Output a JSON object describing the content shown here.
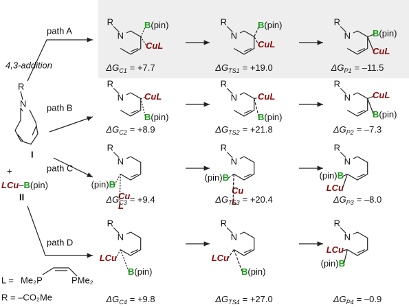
{
  "addition": "4,3-addition",
  "reactant_I": {
    "R": "R",
    "N": "N",
    "label": "I"
  },
  "plus": "+",
  "reactant_II": {
    "LCu": "LCu",
    "dash": "–",
    "B": "B",
    "pin": "(pin)",
    "label": "II"
  },
  "legend": {
    "L_eq": "L =",
    "left": "Me₂P",
    "right": "PMe₂",
    "R_eq": "R = –CO₂Me"
  },
  "paths": [
    {
      "name": "path A",
      "species": [
        {
          "atoms": [
            [
              "R"
            ],
            [
              "N"
            ],
            [
              "B",
              "(pin)"
            ],
            [
              "CuL"
            ]
          ],
          "dg": "ΔG",
          "sub": "C1",
          "val": "= +7.7"
        },
        {
          "atoms": [
            [
              "R"
            ],
            [
              "N"
            ],
            [
              "B",
              "(pin)"
            ],
            [
              "CuL"
            ]
          ],
          "dg": "ΔG",
          "sub": "TS1",
          "val": "= +19.0"
        },
        {
          "atoms": [
            [
              "R"
            ],
            [
              "N"
            ],
            [
              "B",
              "(pin)"
            ],
            [
              "CuL"
            ]
          ],
          "dg": "ΔG",
          "sub": "P1",
          "val": "= –11.5"
        }
      ]
    },
    {
      "name": "path B",
      "species": [
        {
          "atoms": [
            [
              "R"
            ],
            [
              "N"
            ],
            [
              "CuL"
            ],
            [
              "B",
              "(pin)"
            ]
          ],
          "dg": "ΔG",
          "sub": "C2",
          "val": "= +8.9"
        },
        {
          "atoms": [
            [
              "R"
            ],
            [
              "N"
            ],
            [
              "CuL"
            ],
            [
              "B",
              "(pin)"
            ]
          ],
          "dg": "ΔG",
          "sub": "TS2",
          "val": "= +21.8"
        },
        {
          "atoms": [
            [
              "R"
            ],
            [
              "N"
            ],
            [
              "CuL"
            ],
            [
              "B",
              "(pin)"
            ]
          ],
          "dg": "ΔG",
          "sub": "P2",
          "val": "= –7.3"
        }
      ]
    },
    {
      "name": "path C",
      "species": [
        {
          "atoms": [
            [
              "R"
            ],
            [
              "N"
            ],
            [
              "(pin)",
              "B"
            ],
            [
              "Cu"
            ],
            [
              "L"
            ]
          ],
          "dg": "ΔG",
          "sub": "C3",
          "val": "= +9.4"
        },
        {
          "atoms": [
            [
              "R"
            ],
            [
              "N"
            ],
            [
              "(pin)",
              "B"
            ],
            [
              "Cu"
            ],
            [
              "L"
            ]
          ],
          "dg": "ΔG",
          "sub": "TS3",
          "val": "= +20.4"
        },
        {
          "atoms": [
            [
              "R"
            ],
            [
              "N"
            ],
            [
              "(pin)",
              "B"
            ],
            [
              "LCu"
            ]
          ],
          "dg": "ΔG",
          "sub": "P3",
          "val": "= –8.0"
        }
      ]
    },
    {
      "name": "path D",
      "species": [
        {
          "atoms": [
            [
              "R"
            ],
            [
              "N"
            ],
            [
              "LCu"
            ],
            [
              "B",
              "(pin)"
            ]
          ],
          "dg": "ΔG",
          "sub": "C4",
          "val": "= +9.8"
        },
        {
          "atoms": [
            [
              "R"
            ],
            [
              "N"
            ],
            [
              "LCu"
            ],
            [
              "B",
              "(pin)"
            ]
          ],
          "dg": "ΔG",
          "sub": "TS4",
          "val": "= +27.0"
        },
        {
          "atoms": [
            [
              "R"
            ],
            [
              "N"
            ],
            [
              "LCu"
            ],
            [
              "(pin)",
              "B"
            ]
          ],
          "dg": "ΔG",
          "sub": "P4",
          "val": "= –0.9"
        }
      ]
    }
  ]
}
